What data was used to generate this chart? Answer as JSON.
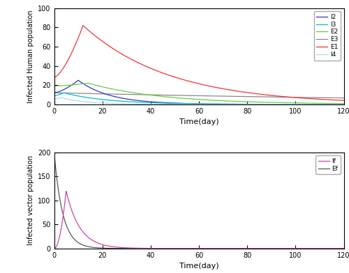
{
  "t_max": 120,
  "top_plot": {
    "ylabel": "Infected Human population",
    "xlabel": "Time(day)",
    "ylim": [
      0,
      100
    ],
    "xlim": [
      0,
      120
    ],
    "colors": {
      "I2": "#3333bb",
      "I3": "#00bbcc",
      "E2": "#66cc44",
      "E3": "#888888",
      "E1": "#ee3333",
      "I4": "#aaddee"
    },
    "legend_order": [
      "I2",
      "I3",
      "E2",
      "E3",
      "E1",
      "I4"
    ]
  },
  "bottom_plot": {
    "ylabel": "Infected vector population",
    "xlabel": "Time(day)",
    "ylim": [
      0,
      200
    ],
    "xlim": [
      0,
      120
    ],
    "colors": {
      "If": "#cc44aa",
      "Ef": "#555555"
    },
    "legend_order": [
      "If",
      "Ef"
    ]
  }
}
